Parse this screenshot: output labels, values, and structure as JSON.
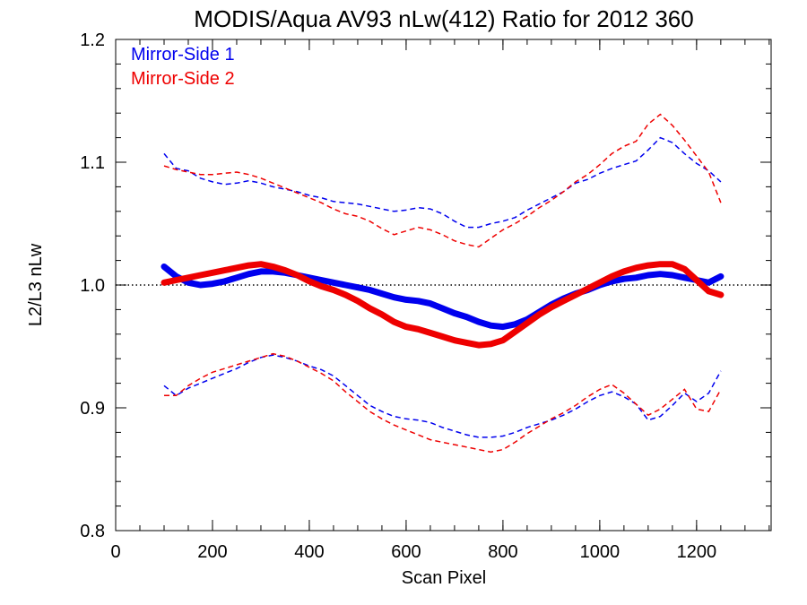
{
  "chart_data": {
    "type": "line",
    "title": "MODIS/Aqua AV93 nLw(412) Ratio for 2012 360",
    "xlabel": "Scan Pixel",
    "ylabel": "L2/L3 nLw",
    "xlim": [
      0,
      1354
    ],
    "ylim": [
      0.8,
      1.2
    ],
    "xticks": [
      0,
      200,
      400,
      600,
      800,
      1000,
      1200
    ],
    "yticks": [
      0.8,
      0.9,
      1.0,
      1.1,
      1.2
    ],
    "xtick_labels": [
      "0",
      "200",
      "400",
      "600",
      "800",
      "1000",
      "1200"
    ],
    "ytick_labels": [
      "0.8",
      "0.9",
      "1.0",
      "1.1",
      "1.2"
    ],
    "reference_line": {
      "y": 1.0,
      "style": "dotted"
    },
    "legend": {
      "placement": "top-left",
      "entries": [
        "Mirror-Side 1",
        "Mirror-Side 2"
      ]
    },
    "colors": {
      "Mirror-Side 1": "#0000ee",
      "Mirror-Side 2": "#ee0000"
    },
    "series": [
      {
        "name": "Mirror-Side 1",
        "role": "mean",
        "x": [
          100,
          125,
          150,
          175,
          200,
          225,
          250,
          275,
          300,
          325,
          350,
          375,
          400,
          425,
          450,
          475,
          500,
          525,
          550,
          575,
          600,
          625,
          650,
          675,
          700,
          725,
          750,
          775,
          800,
          825,
          850,
          875,
          900,
          925,
          950,
          975,
          1000,
          1025,
          1050,
          1075,
          1100,
          1125,
          1150,
          1175,
          1200,
          1225,
          1250
        ],
        "y": [
          1.015,
          1.007,
          1.002,
          1.0,
          1.001,
          1.003,
          1.006,
          1.009,
          1.011,
          1.011,
          1.01,
          1.008,
          1.006,
          1.004,
          1.002,
          1.0,
          0.998,
          0.996,
          0.993,
          0.99,
          0.988,
          0.987,
          0.985,
          0.981,
          0.977,
          0.974,
          0.97,
          0.967,
          0.966,
          0.968,
          0.972,
          0.978,
          0.984,
          0.989,
          0.993,
          0.996,
          1.0,
          1.003,
          1.005,
          1.006,
          1.008,
          1.009,
          1.008,
          1.006,
          1.004,
          1.002,
          1.007
        ]
      },
      {
        "name": "Mirror-Side 2",
        "role": "mean",
        "x": [
          100,
          125,
          150,
          175,
          200,
          225,
          250,
          275,
          300,
          325,
          350,
          375,
          400,
          425,
          450,
          475,
          500,
          525,
          550,
          575,
          600,
          625,
          650,
          675,
          700,
          725,
          750,
          775,
          800,
          825,
          850,
          875,
          900,
          925,
          950,
          975,
          1000,
          1025,
          1050,
          1075,
          1100,
          1125,
          1150,
          1175,
          1200,
          1225,
          1250
        ],
        "y": [
          1.002,
          1.004,
          1.006,
          1.008,
          1.01,
          1.012,
          1.014,
          1.016,
          1.017,
          1.015,
          1.012,
          1.008,
          1.003,
          0.999,
          0.996,
          0.992,
          0.987,
          0.981,
          0.976,
          0.97,
          0.966,
          0.964,
          0.961,
          0.958,
          0.955,
          0.953,
          0.951,
          0.952,
          0.955,
          0.962,
          0.969,
          0.976,
          0.982,
          0.987,
          0.992,
          0.997,
          1.002,
          1.007,
          1.011,
          1.014,
          1.016,
          1.017,
          1.017,
          1.013,
          1.004,
          0.995,
          0.992
        ]
      },
      {
        "name": "Mirror-Side 1",
        "role": "upper bound",
        "x": [
          100,
          125,
          150,
          175,
          200,
          225,
          250,
          275,
          300,
          325,
          350,
          375,
          400,
          425,
          450,
          475,
          500,
          525,
          550,
          575,
          600,
          625,
          650,
          675,
          700,
          725,
          750,
          775,
          800,
          825,
          850,
          875,
          900,
          925,
          950,
          975,
          1000,
          1025,
          1050,
          1075,
          1100,
          1125,
          1150,
          1175,
          1200,
          1225,
          1250
        ],
        "y": [
          1.107,
          1.095,
          1.093,
          1.087,
          1.084,
          1.082,
          1.083,
          1.085,
          1.083,
          1.08,
          1.078,
          1.076,
          1.073,
          1.071,
          1.068,
          1.067,
          1.066,
          1.064,
          1.062,
          1.06,
          1.061,
          1.063,
          1.062,
          1.058,
          1.052,
          1.047,
          1.047,
          1.05,
          1.052,
          1.055,
          1.061,
          1.066,
          1.071,
          1.076,
          1.083,
          1.086,
          1.091,
          1.095,
          1.098,
          1.101,
          1.11,
          1.12,
          1.116,
          1.107,
          1.099,
          1.093,
          1.084
        ]
      },
      {
        "name": "Mirror-Side 2",
        "role": "upper bound",
        "x": [
          100,
          125,
          150,
          175,
          200,
          225,
          250,
          275,
          300,
          325,
          350,
          375,
          400,
          425,
          450,
          475,
          500,
          525,
          550,
          575,
          600,
          625,
          650,
          675,
          700,
          725,
          750,
          775,
          800,
          825,
          850,
          875,
          900,
          925,
          950,
          975,
          1000,
          1025,
          1050,
          1075,
          1100,
          1125,
          1150,
          1175,
          1200,
          1225,
          1250
        ],
        "y": [
          1.097,
          1.094,
          1.092,
          1.09,
          1.09,
          1.091,
          1.092,
          1.09,
          1.087,
          1.083,
          1.079,
          1.075,
          1.071,
          1.067,
          1.062,
          1.058,
          1.056,
          1.052,
          1.046,
          1.041,
          1.044,
          1.047,
          1.045,
          1.041,
          1.036,
          1.033,
          1.031,
          1.038,
          1.045,
          1.05,
          1.056,
          1.063,
          1.069,
          1.076,
          1.084,
          1.09,
          1.098,
          1.107,
          1.113,
          1.117,
          1.131,
          1.139,
          1.13,
          1.118,
          1.105,
          1.092,
          1.067
        ]
      },
      {
        "name": "Mirror-Side 1",
        "role": "lower bound",
        "x": [
          100,
          125,
          150,
          175,
          200,
          225,
          250,
          275,
          300,
          325,
          350,
          375,
          400,
          425,
          450,
          475,
          500,
          525,
          550,
          575,
          600,
          625,
          650,
          675,
          700,
          725,
          750,
          775,
          800,
          825,
          850,
          875,
          900,
          925,
          950,
          975,
          1000,
          1025,
          1050,
          1075,
          1100,
          1125,
          1150,
          1175,
          1200,
          1225,
          1250
        ],
        "y": [
          0.918,
          0.91,
          0.916,
          0.92,
          0.924,
          0.928,
          0.932,
          0.937,
          0.941,
          0.943,
          0.941,
          0.938,
          0.934,
          0.931,
          0.926,
          0.918,
          0.91,
          0.902,
          0.897,
          0.893,
          0.891,
          0.89,
          0.888,
          0.884,
          0.881,
          0.878,
          0.876,
          0.876,
          0.877,
          0.88,
          0.884,
          0.887,
          0.89,
          0.894,
          0.899,
          0.905,
          0.91,
          0.913,
          0.909,
          0.903,
          0.89,
          0.893,
          0.902,
          0.912,
          0.905,
          0.912,
          0.93
        ]
      },
      {
        "name": "Mirror-Side 2",
        "role": "lower bound",
        "x": [
          100,
          125,
          150,
          175,
          200,
          225,
          250,
          275,
          300,
          325,
          350,
          375,
          400,
          425,
          450,
          475,
          500,
          525,
          550,
          575,
          600,
          625,
          650,
          675,
          700,
          725,
          750,
          775,
          800,
          825,
          850,
          875,
          900,
          925,
          950,
          975,
          1000,
          1025,
          1050,
          1075,
          1100,
          1125,
          1150,
          1175,
          1200,
          1225,
          1250
        ],
        "y": [
          0.91,
          0.91,
          0.918,
          0.924,
          0.929,
          0.932,
          0.935,
          0.938,
          0.941,
          0.944,
          0.942,
          0.938,
          0.933,
          0.928,
          0.922,
          0.913,
          0.905,
          0.897,
          0.891,
          0.886,
          0.882,
          0.878,
          0.874,
          0.872,
          0.87,
          0.868,
          0.866,
          0.864,
          0.866,
          0.872,
          0.879,
          0.885,
          0.891,
          0.896,
          0.902,
          0.909,
          0.915,
          0.919,
          0.912,
          0.903,
          0.894,
          0.899,
          0.907,
          0.915,
          0.899,
          0.897,
          0.915
        ]
      }
    ]
  }
}
